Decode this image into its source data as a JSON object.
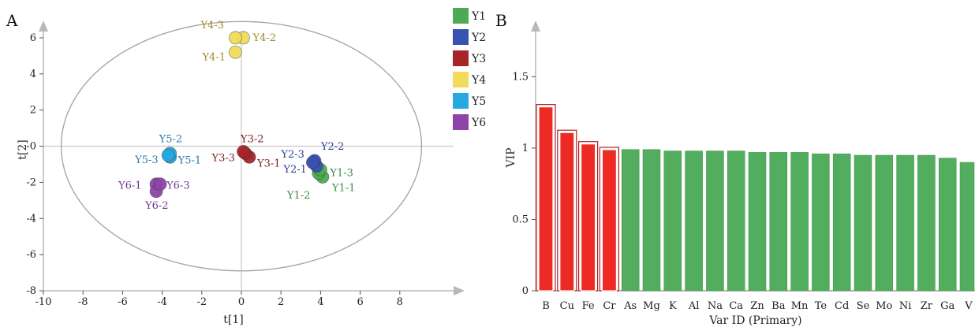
{
  "chart_data": [
    {
      "panel": "A",
      "type": "scatter",
      "xlabel": "t[1]",
      "ylabel": "t[2]",
      "xlim": [
        -10,
        10
      ],
      "ylim": [
        -8,
        7
      ],
      "x_ticks": [
        "-10",
        "-8",
        "-6",
        "-4",
        "-2",
        "0",
        "2",
        "4",
        "6",
        "8"
      ],
      "y_ticks": [
        "-8",
        "-6",
        "-4",
        "-2",
        "-0",
        "2",
        "4",
        "6"
      ],
      "ellipse": {
        "center": [
          0,
          0
        ],
        "radius_x": 9.1,
        "radius_y": 6.9
      },
      "legend": {
        "placement": "right",
        "entries": [
          {
            "name": "Y1",
            "color": "#4aab54"
          },
          {
            "name": "Y2",
            "color": "#3852b0"
          },
          {
            "name": "Y3",
            "color": "#a82428"
          },
          {
            "name": "Y4",
            "color": "#f0dc5a"
          },
          {
            "name": "Y5",
            "color": "#26a9e0"
          },
          {
            "name": "Y6",
            "color": "#8e45a8"
          }
        ]
      },
      "series": [
        {
          "name": "Y1",
          "color": "#4aab54",
          "label_color": "#3a8a3f",
          "points": [
            {
              "label": "Y1-1",
              "x": 4.1,
              "y": -1.7
            },
            {
              "label": "Y1-2",
              "x": 3.9,
              "y": -1.5
            },
            {
              "label": "Y1-3",
              "x": 4.0,
              "y": -1.3
            }
          ]
        },
        {
          "name": "Y2",
          "color": "#3852b0",
          "label_color": "#2a3f8f",
          "points": [
            {
              "label": "Y2-1",
              "x": 3.8,
              "y": -1.1
            },
            {
              "label": "Y2-2",
              "x": 3.7,
              "y": -0.8
            },
            {
              "label": "Y2-3",
              "x": 3.6,
              "y": -0.9
            }
          ]
        },
        {
          "name": "Y3",
          "color": "#a82428",
          "label_color": "#7a1c1f",
          "points": [
            {
              "label": "Y3-1",
              "x": 0.4,
              "y": -0.6
            },
            {
              "label": "Y3-2",
              "x": 0.2,
              "y": -0.4
            },
            {
              "label": "Y3-3",
              "x": 0.1,
              "y": -0.3
            }
          ]
        },
        {
          "name": "Y4",
          "color": "#f0dc5a",
          "label_color": "#a08a2a",
          "points": [
            {
              "label": "Y4-1",
              "x": -0.3,
              "y": 5.2
            },
            {
              "label": "Y4-2",
              "x": 0.1,
              "y": 6.0
            },
            {
              "label": "Y4-3",
              "x": -0.3,
              "y": 6.0
            }
          ]
        },
        {
          "name": "Y5",
          "color": "#26a9e0",
          "label_color": "#2a7aae",
          "points": [
            {
              "label": "Y5-1",
              "x": -3.6,
              "y": -0.6
            },
            {
              "label": "Y5-2",
              "x": -3.6,
              "y": -0.4
            },
            {
              "label": "Y5-3",
              "x": -3.7,
              "y": -0.5
            }
          ]
        },
        {
          "name": "Y6",
          "color": "#8e45a8",
          "label_color": "#6a3a8f",
          "points": [
            {
              "label": "Y6-1",
              "x": -4.3,
              "y": -2.1
            },
            {
              "label": "Y6-2",
              "x": -4.3,
              "y": -2.5
            },
            {
              "label": "Y6-3",
              "x": -4.1,
              "y": -2.1
            }
          ]
        }
      ]
    },
    {
      "panel": "B",
      "type": "bar",
      "xlabel": "Var ID (Primary)",
      "ylabel": "VIP",
      "ylim": [
        0,
        1.9
      ],
      "y_ticks": [
        "0",
        "0.5",
        "1",
        "1.5"
      ],
      "highlight_color": "#ee2a24",
      "base_color": "#52ad5e",
      "categories": [
        "B",
        "Cu",
        "Fe",
        "Cr",
        "As",
        "Mg",
        "K",
        "Al",
        "Na",
        "Ca",
        "Zn",
        "Ba",
        "Mn",
        "Te",
        "Cd",
        "Se",
        "Mo",
        "Ni",
        "Zr",
        "Ga",
        "V"
      ],
      "values": [
        1.3,
        1.12,
        1.04,
        1.0,
        0.99,
        0.99,
        0.98,
        0.98,
        0.98,
        0.98,
        0.97,
        0.97,
        0.97,
        0.96,
        0.96,
        0.95,
        0.95,
        0.95,
        0.95,
        0.93,
        0.9
      ],
      "highlighted": [
        true,
        true,
        true,
        true,
        false,
        false,
        false,
        false,
        false,
        false,
        false,
        false,
        false,
        false,
        false,
        false,
        false,
        false,
        false,
        false,
        false
      ]
    }
  ]
}
